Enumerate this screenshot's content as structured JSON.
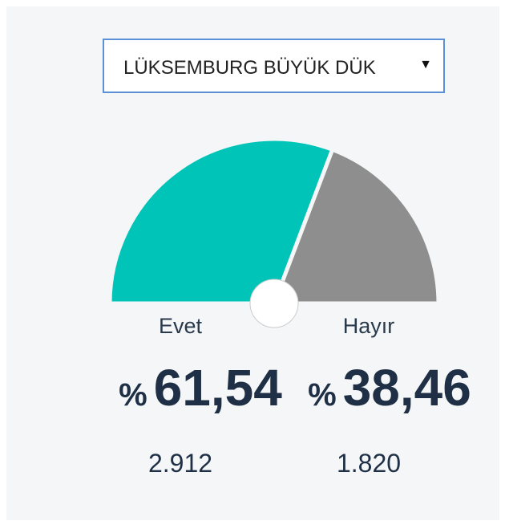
{
  "dropdown": {
    "selected": "LÜKSEMBURG BÜYÜK DÜK"
  },
  "chart_data": {
    "type": "gauge",
    "categories": [
      "Evet",
      "Hayır"
    ],
    "values": [
      61.54,
      38.46
    ],
    "value_labels": [
      "61,54",
      "38,46"
    ],
    "unit": "%",
    "colors": [
      "#00c4b8",
      "#8e8e8e"
    ],
    "counts": [
      2912,
      1820
    ],
    "count_labels": [
      "2.912",
      "1.820"
    ]
  }
}
